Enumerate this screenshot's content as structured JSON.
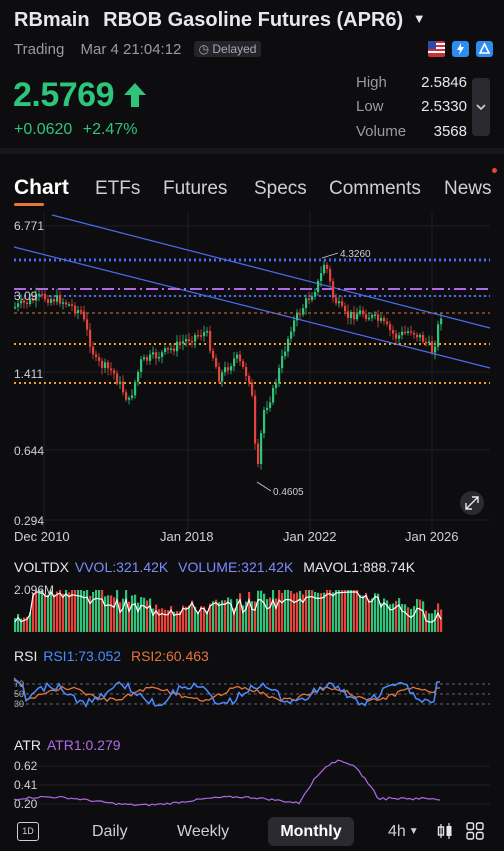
{
  "header": {
    "symbol": "RBmain",
    "name": "RBOB Gasoline Futures (APR6)",
    "status": "Trading",
    "datetime": "Mar 4 21:04:12",
    "delayed_label": "Delayed",
    "icons": [
      "us-flag-icon",
      "lightning-icon",
      "notification-icon"
    ]
  },
  "quote": {
    "last_price": "2.5769",
    "change": "+0.0620",
    "change_pct": "+2.47%",
    "high_label": "High",
    "high": "2.5846",
    "low_label": "Low",
    "low": "2.5330",
    "volume_label": "Volume",
    "volume": "3568",
    "accent_color": "#2ec47a"
  },
  "tabs": [
    "Chart",
    "ETFs",
    "Futures",
    "Specs",
    "Comments",
    "News"
  ],
  "chart": {
    "y_ticks": [
      "6.771",
      "3.09",
      "1.411",
      "0.644",
      "0.294"
    ],
    "x_ticks": [
      "Dec 2010",
      "Jan 2018",
      "Jan 2022",
      "Jan 2026"
    ],
    "high_marker": "4.3260",
    "low_marker": "0.4605"
  },
  "indicators": {
    "voltdx": {
      "name": "VOLTDX",
      "vvol": "VVOL:321.42K",
      "volume": "VOLUME:321.42K",
      "mavol": "MAVOL1:888.74K",
      "axis_max": "2.096M"
    },
    "rsi": {
      "name": "RSI",
      "rsi1": "RSI1:73.052",
      "rsi2": "RSI2:60.463",
      "levels": [
        "70",
        "50",
        "30"
      ]
    },
    "atr": {
      "name": "ATR",
      "atr1": "ATR1:0.279",
      "ticks": [
        "0.62",
        "0.41",
        "0.20"
      ]
    }
  },
  "bottom_bar": {
    "icon": "1D",
    "daily": "Daily",
    "weekly": "Weekly",
    "monthly": "Monthly",
    "interval": "4h",
    "icons": [
      "candles-icon",
      "grid-icon"
    ]
  }
}
